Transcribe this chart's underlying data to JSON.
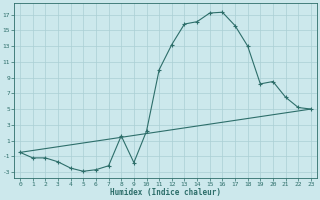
{
  "xlabel": "Humidex (Indice chaleur)",
  "background_color": "#cce8ec",
  "line_color": "#2d6e6a",
  "grid_color": "#aacfd4",
  "curve1_x": [
    0,
    1,
    2,
    3,
    4,
    5,
    6,
    7,
    8,
    9,
    10,
    11,
    12,
    13,
    14,
    15,
    16,
    17,
    18,
    19,
    20,
    21,
    22,
    23
  ],
  "curve1_y": [
    -0.5,
    -1.2,
    -1.2,
    -1.7,
    -2.5,
    -2.9,
    -2.7,
    -2.2,
    1.6,
    -1.8,
    2.2,
    10.0,
    13.2,
    15.8,
    16.1,
    17.2,
    17.3,
    15.6,
    13.0,
    8.2,
    8.5,
    6.5,
    5.2,
    5.0
  ],
  "curve2_x": [
    0,
    23
  ],
  "curve2_y": [
    -0.5,
    5.0
  ],
  "xlim": [
    -0.5,
    23.5
  ],
  "ylim": [
    -3.8,
    18.5
  ],
  "yticks": [
    -3,
    -1,
    1,
    3,
    5,
    7,
    9,
    11,
    13,
    15,
    17
  ],
  "xticks": [
    0,
    1,
    2,
    3,
    4,
    5,
    6,
    7,
    8,
    9,
    10,
    11,
    12,
    13,
    14,
    15,
    16,
    17,
    18,
    19,
    20,
    21,
    22,
    23
  ],
  "figwidth": 3.2,
  "figheight": 2.0,
  "dpi": 100
}
